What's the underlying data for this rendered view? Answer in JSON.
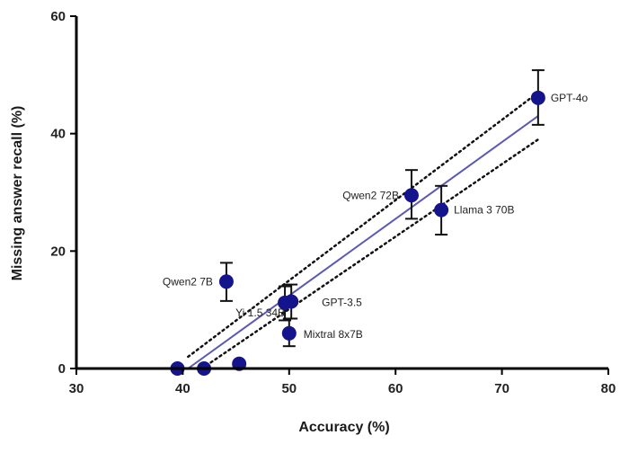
{
  "chart_data": {
    "type": "scatter",
    "xlabel": "Accuracy (%)",
    "ylabel": "Missing answer recall (%)",
    "xlim": [
      30,
      80
    ],
    "ylim": [
      0,
      60
    ],
    "xticks": [
      30,
      40,
      50,
      60,
      70,
      80
    ],
    "yticks": [
      0,
      20,
      40,
      60
    ],
    "grid": false,
    "colors": {
      "point": "#14148c",
      "fit_line": "#5a5ab4",
      "ci_line": "#111111",
      "axis": "#000000",
      "error_bar": "#111111"
    },
    "points": [
      {
        "label": "GPT-4o",
        "x": 73.4,
        "y": 46.1,
        "err": [
          41.5,
          50.8
        ]
      },
      {
        "label": "Qwen2 72B",
        "x": 61.5,
        "y": 29.5,
        "err": [
          25.5,
          33.8
        ]
      },
      {
        "label": "Llama 3 70B",
        "x": 64.3,
        "y": 27.0,
        "err": [
          22.8,
          31.1
        ]
      },
      {
        "label": "Qwen2 7B",
        "x": 44.1,
        "y": 14.8,
        "err": [
          11.5,
          18.0
        ]
      },
      {
        "label": "GPT-3.5",
        "x": 50.2,
        "y": 11.4,
        "err": [
          8.5,
          14.3
        ]
      },
      {
        "label": "Yi 1.5 34B",
        "x": 49.6,
        "y": 11.2,
        "err": [
          8.2,
          14.0
        ]
      },
      {
        "label": "Mixtral 8x7B",
        "x": 50.0,
        "y": 6.0,
        "err": [
          3.8,
          8.5
        ]
      },
      {
        "label": "",
        "x": 39.5,
        "y": 0.0,
        "err": null
      },
      {
        "label": "",
        "x": 42.0,
        "y": 0.0,
        "err": null
      },
      {
        "label": "",
        "x": 45.3,
        "y": 0.8,
        "err": null
      }
    ],
    "fit_line": {
      "x": [
        40.5,
        73.4
      ],
      "y": [
        0.0,
        43.0
      ]
    },
    "ci_upper": {
      "x": [
        40.5,
        73.4
      ],
      "y": [
        2.0,
        47.0
      ]
    },
    "ci_lower": {
      "x": [
        41.8,
        73.4
      ],
      "y": [
        0.0,
        39.0
      ]
    }
  }
}
